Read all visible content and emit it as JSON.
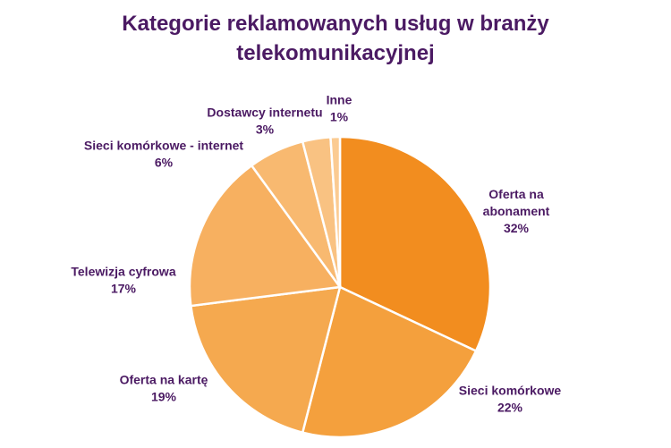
{
  "chart_data": {
    "type": "pie",
    "title": [
      "Kategorie reklamowanych usług w branży",
      "telekomunikacyjnej"
    ],
    "slices": [
      {
        "label": [
          "Oferta na",
          "abonament"
        ],
        "value": 32,
        "value_label": "32%",
        "color": "#f28d1f"
      },
      {
        "label": [
          "Sieci komórkowe"
        ],
        "value": 22,
        "value_label": "22%",
        "color": "#f4a03d"
      },
      {
        "label": [
          "Oferta na kartę"
        ],
        "value": 19,
        "value_label": "19%",
        "color": "#f5a94f"
      },
      {
        "label": [
          "Telewizja cyfrowa"
        ],
        "value": 17,
        "value_label": "17%",
        "color": "#f7b060"
      },
      {
        "label": [
          "Sieci komórkowe - internet"
        ],
        "value": 6,
        "value_label": "6%",
        "color": "#f8b970"
      },
      {
        "label": [
          "Dostawcy internetu"
        ],
        "value": 3,
        "value_label": "3%",
        "color": "#f9c282"
      },
      {
        "label": [
          "Inne"
        ],
        "value": 1,
        "value_label": "1%",
        "color": "#fbcb92"
      }
    ],
    "legend": "none"
  }
}
